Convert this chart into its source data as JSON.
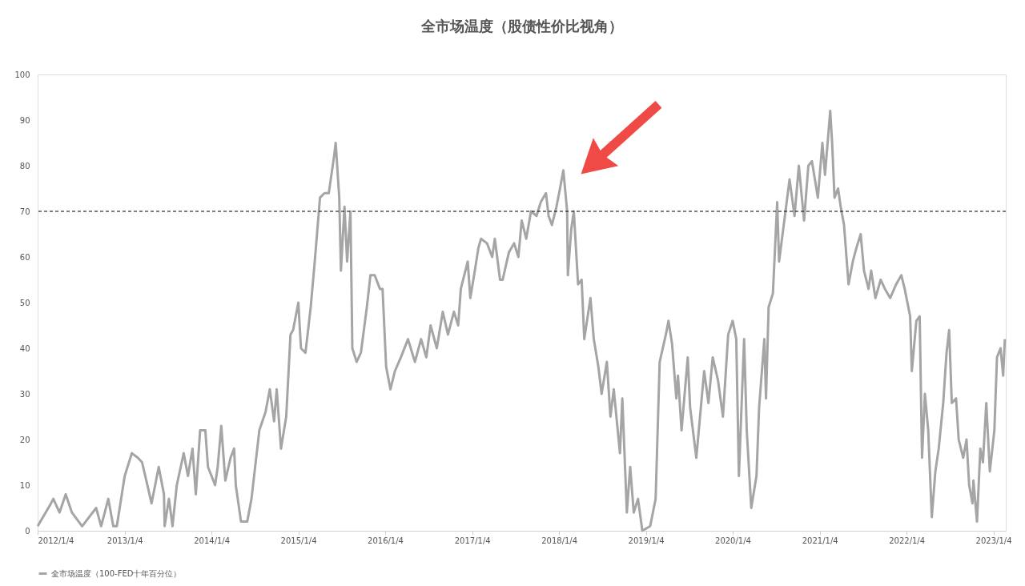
{
  "chart_data": {
    "type": "line",
    "title": "全市场温度（股债性价比视角）",
    "x": [
      "2012-01-04",
      "2012-02-25",
      "2012-03-10",
      "2012-04-05",
      "2012-05-01",
      "2012-05-27",
      "2012-07-09",
      "2012-09-06",
      "2012-09-27",
      "2012-10-27",
      "2012-11-17",
      "2012-12-02",
      "2013-01-04",
      "2013-02-03",
      "2013-02-28",
      "2013-03-18",
      "2013-04-05",
      "2013-04-27",
      "2013-05-27",
      "2013-06-18",
      "2013-06-21",
      "2013-07-09",
      "2013-07-24",
      "2013-08-11",
      "2013-09-09",
      "2013-09-27",
      "2013-10-16",
      "2013-10-30",
      "2013-11-17",
      "2013-12-09",
      "2013-12-20",
      "2014-01-19",
      "2014-01-30",
      "2014-02-14",
      "2014-03-03",
      "2014-03-25",
      "2014-04-09",
      "2014-04-16",
      "2014-05-08",
      "2014-06-03",
      "2014-06-21",
      "2014-07-24",
      "2014-08-19",
      "2014-09-06",
      "2014-09-24",
      "2014-10-05",
      "2014-10-23",
      "2014-11-14",
      "2014-12-02",
      "2014-12-13",
      "2015-01-04",
      "2015-01-15",
      "2015-02-03",
      "2015-02-25",
      "2015-03-14",
      "2015-04-05",
      "2015-04-24",
      "2015-05-12",
      "2015-06-03",
      "2015-06-10",
      "2015-06-25",
      "2015-07-02",
      "2015-07-17",
      "2015-07-28",
      "2015-08-11",
      "2015-08-19",
      "2015-09-06",
      "2015-09-24",
      "2015-10-19",
      "2015-11-03",
      "2015-11-21",
      "2015-12-13",
      "2015-12-24",
      "2016-01-08",
      "2016-01-26",
      "2016-02-14",
      "2016-03-10",
      "2016-04-09",
      "2016-05-08",
      "2016-06-03",
      "2016-06-25",
      "2016-07-13",
      "2016-08-08",
      "2016-09-02",
      "2016-09-24",
      "2016-10-19",
      "2016-11-06",
      "2016-11-17",
      "2016-12-16",
      "2016-12-27",
      "2017-01-15",
      "2017-01-30",
      "2017-02-10",
      "2017-03-07",
      "2017-03-29",
      "2017-04-09",
      "2017-05-01",
      "2017-05-12",
      "2017-06-07",
      "2017-06-29",
      "2017-07-17",
      "2017-07-31",
      "2017-08-19",
      "2017-09-08",
      "2017-10-01",
      "2017-10-19",
      "2017-11-10",
      "2017-11-21",
      "2017-12-05",
      "2017-12-24",
      "2018-01-08",
      "2018-01-22",
      "2018-02-07",
      "2018-02-10",
      "2018-02-24",
      "2018-03-07",
      "2018-03-25",
      "2018-04-09",
      "2018-04-20",
      "2018-05-16",
      "2018-05-30",
      "2018-06-18",
      "2018-07-02",
      "2018-07-24",
      "2018-08-08",
      "2018-08-22",
      "2018-09-17",
      "2018-09-27",
      "2018-10-16",
      "2018-10-30",
      "2018-11-14",
      "2018-12-02",
      "2018-12-20",
      "2019-01-22",
      "2019-02-14",
      "2019-03-03",
      "2019-03-29",
      "2019-04-09",
      "2019-04-24",
      "2019-05-12",
      "2019-05-19",
      "2019-06-03",
      "2019-06-29",
      "2019-07-09",
      "2019-08-04",
      "2019-09-06",
      "2019-09-24",
      "2019-10-12",
      "2019-11-03",
      "2019-11-24",
      "2019-12-16",
      "2020-01-04",
      "2020-01-19",
      "2020-01-30",
      "2020-02-21",
      "2020-03-03",
      "2020-03-22",
      "2020-04-13",
      "2020-04-24",
      "2020-05-16",
      "2020-05-23",
      "2020-06-03",
      "2020-06-21",
      "2020-07-09",
      "2020-07-17",
      "2020-08-08",
      "2020-08-30",
      "2020-09-20",
      "2020-10-08",
      "2020-10-30",
      "2020-11-17",
      "2020-12-02",
      "2020-12-27",
      "2021-01-15",
      "2021-01-26",
      "2021-02-17",
      "2021-02-25",
      "2021-03-07",
      "2021-03-22",
      "2021-04-02",
      "2021-04-16",
      "2021-05-05",
      "2021-05-23",
      "2021-06-07",
      "2021-06-25",
      "2021-07-09",
      "2021-07-28",
      "2021-08-08",
      "2021-08-26",
      "2021-09-17",
      "2021-10-05",
      "2021-10-27",
      "2021-11-21",
      "2021-12-13",
      "2021-12-27",
      "2022-01-19",
      "2022-01-26",
      "2022-02-14",
      "2022-02-28",
      "2022-03-10",
      "2022-03-22",
      "2022-04-05",
      "2022-04-20",
      "2022-05-05",
      "2022-05-19",
      "2022-06-07",
      "2022-06-21",
      "2022-07-02",
      "2022-07-13",
      "2022-07-31",
      "2022-08-11",
      "2022-08-30",
      "2022-09-13",
      "2022-09-24",
      "2022-10-08",
      "2022-10-12",
      "2022-10-27",
      "2022-11-10",
      "2022-11-21",
      "2022-12-05",
      "2022-12-20",
      "2023-01-08",
      "2023-01-19",
      "2023-02-03",
      "2023-02-14",
      "2023-02-21"
    ],
    "series": [
      {
        "name": "全市场温度（100-FED十年百分位）",
        "color": "#a5a5a5",
        "values": [
          1,
          5.6,
          7,
          4,
          8,
          4,
          1,
          5,
          1,
          7,
          1,
          1,
          12,
          17,
          16,
          15,
          11,
          6,
          14,
          8,
          1,
          7,
          1,
          10,
          17,
          12,
          18,
          8,
          22,
          22,
          14,
          10,
          14,
          23,
          11,
          16,
          18,
          10,
          2,
          2,
          7,
          22,
          26,
          31,
          24,
          31,
          18,
          25,
          43,
          44,
          50,
          40,
          39,
          49,
          59,
          73,
          74,
          74,
          82,
          85,
          73,
          57,
          71,
          59,
          70,
          40,
          37,
          39,
          49,
          56,
          56,
          53,
          53,
          36,
          31,
          35,
          38,
          42,
          37,
          42,
          38,
          45,
          40,
          48,
          43,
          48,
          45,
          53,
          59,
          51,
          57,
          62,
          64,
          63,
          60,
          64,
          55,
          55,
          61,
          63,
          60,
          68,
          64,
          70,
          69,
          72,
          74,
          69,
          67,
          71,
          75,
          79,
          70,
          56,
          66,
          70,
          54,
          55,
          42,
          51,
          42,
          36,
          30,
          37,
          25,
          31,
          17,
          29,
          4,
          14,
          4,
          7,
          0,
          1,
          7,
          37,
          43,
          46,
          41,
          29,
          34,
          22,
          38,
          27,
          16,
          35,
          28,
          38,
          33,
          25,
          43,
          46,
          42,
          12,
          42,
          22,
          5,
          12,
          27,
          42,
          29,
          49,
          52,
          72,
          59,
          68,
          77,
          69,
          80,
          68,
          80,
          81,
          73,
          85,
          78,
          92,
          85,
          73,
          75,
          71,
          67,
          54,
          59,
          62,
          65,
          57,
          53,
          57,
          51,
          55,
          53,
          51,
          54,
          56,
          53,
          47,
          35,
          46,
          47,
          16,
          30,
          22,
          3,
          13,
          18,
          28,
          39,
          44,
          28,
          29,
          20,
          16,
          20,
          10,
          6,
          11,
          2,
          18,
          15,
          28,
          13,
          22,
          38,
          40,
          34,
          42
        ]
      }
    ],
    "xlim": [
      "2012-01-04",
      "2023-02-25"
    ],
    "xticks": [
      {
        "value": "2012-01-04",
        "label": "2012/1/4"
      },
      {
        "value": "2013-01-04",
        "label": "2013/1/4"
      },
      {
        "value": "2014-01-04",
        "label": "2014/1/4"
      },
      {
        "value": "2015-01-04",
        "label": "2015/1/4"
      },
      {
        "value": "2016-01-04",
        "label": "2016/1/4"
      },
      {
        "value": "2017-01-04",
        "label": "2017/1/4"
      },
      {
        "value": "2018-01-04",
        "label": "2018/1/4"
      },
      {
        "value": "2019-01-04",
        "label": "2019/1/4"
      },
      {
        "value": "2020-01-04",
        "label": "2020/1/4"
      },
      {
        "value": "2021-01-04",
        "label": "2021/1/4"
      },
      {
        "value": "2022-01-04",
        "label": "2022/1/4"
      },
      {
        "value": "2023-01-04",
        "label": "2023/1/4"
      }
    ],
    "ylim": [
      0,
      100
    ],
    "yticks": [
      0,
      10,
      20,
      30,
      40,
      50,
      60,
      70,
      80,
      90,
      100
    ],
    "ref_lines": [
      {
        "axis": "y",
        "value": 70,
        "color": "#000000",
        "line_style": "dashed"
      }
    ],
    "grid": false,
    "legend": "bottom",
    "marker": "none",
    "line_style": "solid"
  }
}
